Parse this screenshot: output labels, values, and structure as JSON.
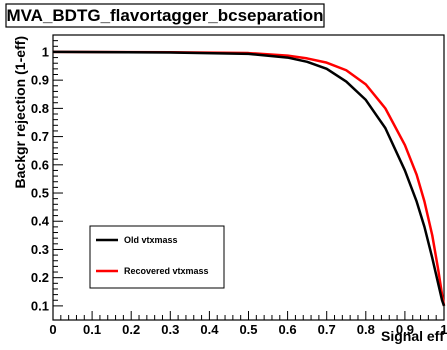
{
  "chart_data": {
    "type": "line",
    "title": "MVA_BDTG_flavortagger_bcseparation",
    "xlabel": "Signal eff",
    "ylabel": "Backgr rejection (1-eff)",
    "xlim": [
      0,
      1
    ],
    "ylim": [
      0.05,
      1.06
    ],
    "x_ticks": [
      "0",
      "0.1",
      "0.2",
      "0.3",
      "0.4",
      "0.5",
      "0.6",
      "0.7",
      "0.8",
      "0.9",
      "1"
    ],
    "y_ticks": [
      "0.1",
      "0.2",
      "0.3",
      "0.4",
      "0.5",
      "0.6",
      "0.7",
      "0.8",
      "0.9",
      "1"
    ],
    "grid": false,
    "legend_position": "bottom-left",
    "series": [
      {
        "name": "Old vtxmass",
        "color": "#000000",
        "x": [
          0.0,
          0.3,
          0.5,
          0.6,
          0.65,
          0.7,
          0.75,
          0.8,
          0.85,
          0.9,
          0.93,
          0.95,
          0.97,
          0.985,
          0.995,
          1.0
        ],
        "y": [
          1.0,
          0.998,
          0.993,
          0.98,
          0.965,
          0.94,
          0.895,
          0.83,
          0.73,
          0.58,
          0.47,
          0.38,
          0.27,
          0.18,
          0.12,
          0.1
        ]
      },
      {
        "name": "Recovered vtxmass",
        "color": "#ff0000",
        "x": [
          0.0,
          0.3,
          0.5,
          0.6,
          0.65,
          0.7,
          0.75,
          0.8,
          0.85,
          0.9,
          0.93,
          0.95,
          0.97,
          0.985,
          0.995,
          1.0
        ],
        "y": [
          1.0,
          0.999,
          0.996,
          0.987,
          0.977,
          0.962,
          0.935,
          0.885,
          0.8,
          0.67,
          0.565,
          0.47,
          0.35,
          0.23,
          0.14,
          0.1
        ]
      }
    ]
  }
}
